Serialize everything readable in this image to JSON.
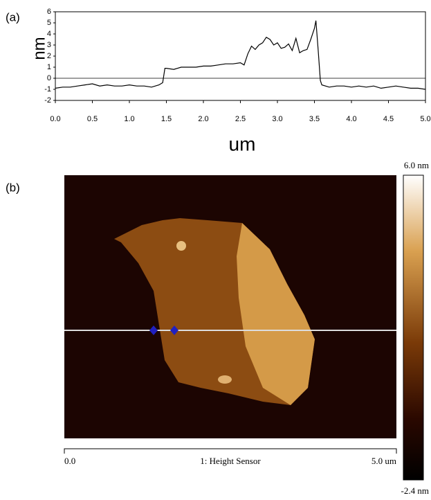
{
  "panel_labels": [
    "(a)",
    "(b)"
  ],
  "chart_data": {
    "type": "line",
    "x_label": "um",
    "y_label": "nm",
    "series": [
      {
        "color": "#000000",
        "x": [
          0,
          0.1,
          0.2,
          0.3,
          0.4,
          0.5,
          0.6,
          0.7,
          0.8,
          0.9,
          1.0,
          1.1,
          1.2,
          1.3,
          1.4,
          1.45,
          1.48,
          1.5,
          1.6,
          1.7,
          1.8,
          1.9,
          2.0,
          2.1,
          2.2,
          2.3,
          2.4,
          2.5,
          2.55,
          2.6,
          2.65,
          2.7,
          2.75,
          2.8,
          2.85,
          2.9,
          2.95,
          3.0,
          3.05,
          3.1,
          3.15,
          3.2,
          3.25,
          3.3,
          3.35,
          3.4,
          3.45,
          3.5,
          3.52,
          3.55,
          3.58,
          3.6,
          3.7,
          3.8,
          3.9,
          4.0,
          4.1,
          4.2,
          4.3,
          4.4,
          4.5,
          4.6,
          4.7,
          4.8,
          4.9,
          5.0
        ],
        "values": [
          -0.9,
          -0.8,
          -0.8,
          -0.7,
          -0.6,
          -0.5,
          -0.7,
          -0.6,
          -0.7,
          -0.7,
          -0.6,
          -0.7,
          -0.7,
          -0.8,
          -0.6,
          -0.4,
          0.9,
          0.9,
          0.8,
          1.0,
          1.0,
          1.0,
          1.1,
          1.1,
          1.2,
          1.3,
          1.3,
          1.4,
          1.2,
          2.2,
          2.9,
          2.6,
          3.0,
          3.2,
          3.7,
          3.5,
          3.0,
          3.2,
          2.7,
          2.8,
          3.1,
          2.5,
          3.6,
          2.3,
          2.5,
          2.6,
          3.5,
          4.5,
          5.2,
          2.6,
          -0.2,
          -0.6,
          -0.8,
          -0.7,
          -0.7,
          -0.8,
          -0.7,
          -0.8,
          -0.7,
          -0.9,
          -0.8,
          -0.7,
          -0.8,
          -0.9,
          -0.9,
          -1.0
        ]
      }
    ],
    "xlim": [
      0,
      5.0
    ],
    "xticks": [
      {
        "value": 0,
        "label": "0.0"
      },
      0.5,
      {
        "value": 1,
        "label": "1.0"
      },
      1.5,
      {
        "value": 2,
        "label": "2.0"
      },
      2.5,
      {
        "value": 3,
        "label": "3.0"
      },
      3.5,
      {
        "value": 4,
        "label": "4.0"
      },
      4.5,
      {
        "value": 5,
        "label": "5.0"
      }
    ],
    "ylim": [
      -2,
      6
    ],
    "yticks": [
      -2,
      -1,
      0,
      1,
      2,
      3,
      4,
      5,
      6
    ]
  },
  "afm_image": {
    "scale_max": "6.0 nm",
    "scale_min": "-2.4 nm",
    "bar_start": "0.0",
    "channel": "1: Height Sensor",
    "bar_end": "5.0 um"
  }
}
